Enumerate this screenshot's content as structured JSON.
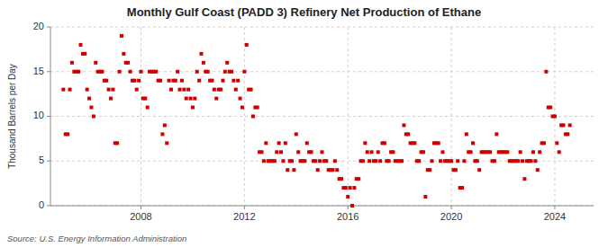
{
  "chart_data": {
    "type": "scatter",
    "title": "Monthly Gulf Coast (PADD 3) Refinery Net Production of Ethane",
    "ylabel": "Thousand Barrels per Day",
    "annotations": [
      "Source: U.S. Energy Information Administration"
    ],
    "color": "#cc0000",
    "marker": "square",
    "grid": true,
    "xlim": [
      2004.5,
      2025.5
    ],
    "xticks": [
      2008,
      2012,
      2016,
      2020,
      2024
    ],
    "ylim": [
      0,
      20
    ],
    "yticks": [
      0,
      5,
      10,
      15,
      20
    ],
    "x": [
      2005.0,
      2005.083,
      2005.167,
      2005.25,
      2005.333,
      2005.417,
      2005.5,
      2005.583,
      2005.667,
      2005.75,
      2005.833,
      2005.917,
      2006.0,
      2006.083,
      2006.167,
      2006.25,
      2006.333,
      2006.417,
      2006.5,
      2006.583,
      2006.667,
      2006.75,
      2006.833,
      2006.917,
      2007.0,
      2007.083,
      2007.167,
      2007.25,
      2007.333,
      2007.417,
      2007.5,
      2007.583,
      2007.667,
      2007.75,
      2007.833,
      2007.917,
      2008.0,
      2008.083,
      2008.167,
      2008.25,
      2008.333,
      2008.417,
      2008.5,
      2008.583,
      2008.667,
      2008.75,
      2008.833,
      2008.917,
      2009.0,
      2009.083,
      2009.167,
      2009.25,
      2009.333,
      2009.417,
      2009.5,
      2009.583,
      2009.667,
      2009.75,
      2009.833,
      2009.917,
      2010.0,
      2010.083,
      2010.167,
      2010.25,
      2010.333,
      2010.417,
      2010.5,
      2010.583,
      2010.667,
      2010.75,
      2010.833,
      2010.917,
      2011.0,
      2011.083,
      2011.167,
      2011.25,
      2011.333,
      2011.417,
      2011.5,
      2011.583,
      2011.667,
      2011.75,
      2011.833,
      2011.917,
      2012.0,
      2012.083,
      2012.167,
      2012.25,
      2012.333,
      2012.417,
      2012.5,
      2012.583,
      2012.667,
      2012.75,
      2012.833,
      2012.917,
      2013.0,
      2013.083,
      2013.167,
      2013.25,
      2013.333,
      2013.417,
      2013.5,
      2013.583,
      2013.667,
      2013.75,
      2013.833,
      2013.917,
      2014.0,
      2014.083,
      2014.167,
      2014.25,
      2014.333,
      2014.417,
      2014.5,
      2014.583,
      2014.667,
      2014.75,
      2014.833,
      2014.917,
      2015.0,
      2015.083,
      2015.167,
      2015.25,
      2015.333,
      2015.417,
      2015.5,
      2015.583,
      2015.667,
      2015.75,
      2015.833,
      2015.917,
      2016.0,
      2016.083,
      2016.167,
      2016.25,
      2016.333,
      2016.417,
      2016.5,
      2016.583,
      2016.667,
      2016.75,
      2016.833,
      2016.917,
      2017.0,
      2017.083,
      2017.167,
      2017.25,
      2017.333,
      2017.417,
      2017.5,
      2017.583,
      2017.667,
      2017.75,
      2017.833,
      2017.917,
      2018.0,
      2018.083,
      2018.167,
      2018.25,
      2018.333,
      2018.417,
      2018.5,
      2018.583,
      2018.667,
      2018.75,
      2018.833,
      2018.917,
      2019.0,
      2019.083,
      2019.167,
      2019.25,
      2019.333,
      2019.417,
      2019.5,
      2019.583,
      2019.667,
      2019.75,
      2019.833,
      2019.917,
      2020.0,
      2020.083,
      2020.167,
      2020.25,
      2020.333,
      2020.417,
      2020.5,
      2020.583,
      2020.667,
      2020.75,
      2020.833,
      2020.917,
      2021.0,
      2021.083,
      2021.167,
      2021.25,
      2021.333,
      2021.417,
      2021.5,
      2021.583,
      2021.667,
      2021.75,
      2021.833,
      2021.917,
      2022.0,
      2022.083,
      2022.167,
      2022.25,
      2022.333,
      2022.417,
      2022.5,
      2022.583,
      2022.667,
      2022.75,
      2022.833,
      2022.917,
      2023.0,
      2023.083,
      2023.167,
      2023.25,
      2023.333,
      2023.417,
      2023.5,
      2023.583,
      2023.667,
      2023.75,
      2023.833,
      2023.917,
      2024.0,
      2024.083,
      2024.167,
      2024.25,
      2024.333,
      2024.417,
      2024.5,
      2024.583
    ],
    "values": [
      13,
      8,
      8,
      13,
      16,
      15,
      15,
      15,
      18,
      17,
      17,
      13,
      12,
      11,
      10,
      16,
      15,
      15,
      15,
      14,
      14,
      13,
      12,
      13,
      7,
      7,
      15,
      19,
      17,
      16,
      16,
      15,
      14,
      14,
      13,
      14,
      15,
      12,
      12,
      11,
      15,
      15,
      15,
      15,
      14,
      14,
      8,
      9,
      7,
      14,
      13,
      14,
      14,
      15,
      13,
      14,
      13,
      12,
      13,
      12,
      11,
      12,
      15,
      14,
      17,
      16,
      15,
      15,
      14,
      14,
      13,
      12,
      13,
      13,
      14,
      15,
      16,
      15,
      15,
      14,
      13,
      14,
      12,
      11,
      15,
      18,
      13,
      13,
      10,
      11,
      11,
      6,
      6,
      5,
      7,
      5,
      5,
      5,
      5,
      6,
      7,
      6,
      5,
      7,
      4,
      5,
      5,
      4,
      8,
      6,
      5,
      5,
      5,
      7,
      6,
      6,
      5,
      5,
      4,
      5,
      6,
      5,
      5,
      4,
      4,
      4,
      5,
      4,
      3,
      3,
      2,
      2,
      1,
      2,
      0,
      2,
      3,
      3,
      5,
      5,
      7,
      6,
      5,
      6,
      5,
      5,
      6,
      5,
      7,
      7,
      5,
      5,
      6,
      6,
      5,
      5,
      5,
      5,
      9,
      8,
      8,
      7,
      7,
      7,
      5,
      5,
      6,
      6,
      1,
      4,
      4,
      5,
      7,
      7,
      7,
      5,
      6,
      5,
      5,
      5,
      5,
      4,
      4,
      5,
      2,
      2,
      5,
      8,
      6,
      6,
      7,
      5,
      5,
      4,
      6,
      6,
      6,
      6,
      6,
      5,
      5,
      8,
      6,
      6,
      6,
      6,
      6,
      5,
      5,
      5,
      5,
      5,
      6,
      5,
      3,
      5,
      5,
      5,
      6,
      5,
      4,
      6,
      7,
      7,
      15,
      11,
      11,
      10,
      10,
      7,
      6,
      9,
      9,
      8,
      8,
      9
    ]
  }
}
